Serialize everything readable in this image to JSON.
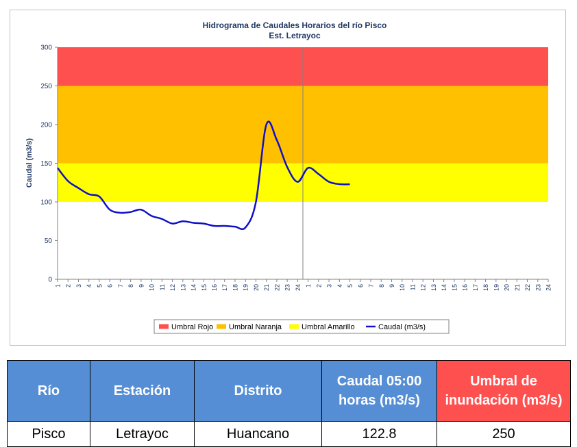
{
  "chart_data": {
    "type": "line",
    "title": "Hidrograma de Caudales Horarios del río Pisco",
    "subtitle": "Est. Letrayoc",
    "y_label": "Caudal  (m3/s)",
    "categories": [
      "1",
      "2",
      "3",
      "4",
      "5",
      "6",
      "7",
      "8",
      "9",
      "10",
      "11",
      "12",
      "13",
      "14",
      "15",
      "16",
      "17",
      "18",
      "19",
      "20",
      "21",
      "22",
      "23",
      "24",
      "1",
      "2",
      "3",
      "4",
      "5",
      "6",
      "7",
      "8",
      "9",
      "10",
      "11",
      "12",
      "13",
      "14",
      "15",
      "16",
      "17",
      "18",
      "19",
      "20",
      "21",
      "22",
      "23",
      "24"
    ],
    "ylim": [
      0,
      300
    ],
    "yticks": [
      0,
      50,
      100,
      150,
      200,
      250,
      300
    ],
    "bands": [
      {
        "name": "Umbral Rojo",
        "color": "#ff5050",
        "range": [
          250,
          300
        ]
      },
      {
        "name": "Umbral Naranja",
        "color": "#ffc000",
        "range": [
          150,
          250
        ]
      },
      {
        "name": "Umbral Amarillo",
        "color": "#ffff00",
        "range": [
          100,
          150
        ]
      }
    ],
    "series": [
      {
        "name": "Caudal (m3/s)",
        "color": "#1010c8",
        "values": [
          144,
          127,
          118,
          110,
          107,
          90,
          86,
          87,
          90,
          82,
          78,
          72,
          75,
          73,
          72,
          69,
          69,
          68,
          67,
          100,
          200,
          180,
          145,
          126,
          144,
          136,
          126,
          123,
          122.8,
          null,
          null,
          null,
          null,
          null,
          null,
          null,
          null,
          null,
          null,
          null,
          null,
          null,
          null,
          null,
          null,
          null,
          null,
          null
        ]
      }
    ]
  },
  "table": {
    "headers": [
      "Río",
      "Estación",
      "Distrito",
      "Caudal 05:00 horas (m3/s)",
      "Umbral de inundación (m3/s)"
    ],
    "rows": [
      [
        "Pisco",
        "Letrayoc",
        "Huancano",
        "122.8",
        "250"
      ]
    ]
  }
}
